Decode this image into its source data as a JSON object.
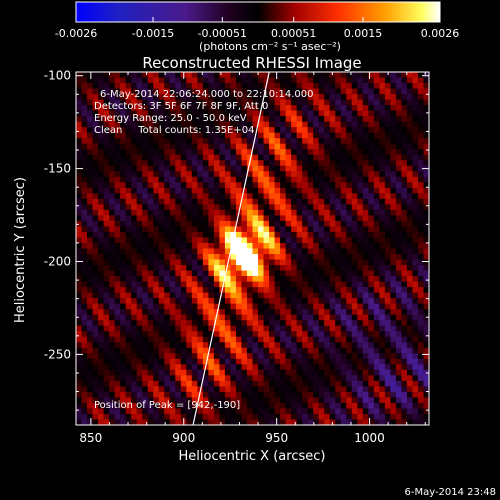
{
  "chart_data": {
    "type": "heatmap",
    "title": "Reconstructed RHESSI Image",
    "xlabel": "Heliocentric X (arcsec)",
    "ylabel": "Heliocentric Y (arcsec)",
    "xlim": [
      842,
      1032
    ],
    "ylim": [
      -288,
      -98
    ],
    "xticks": [
      850,
      900,
      950,
      1000
    ],
    "yticks": [
      -100,
      -150,
      -200,
      -250
    ],
    "colorbar": {
      "range": [
        -0.0026,
        0.0026
      ],
      "ticks": [
        "-0.0026",
        "-0.0015",
        "-0.00051",
        "0.00051",
        "0.0015",
        "0.0026"
      ],
      "unit_label": "(photons cm⁻² s⁻¹ asec⁻²)",
      "colormap": "blue-black-red-yellow-white"
    },
    "annotations": [
      "6-May-2014 22:06:24.000 to 22:10:14.000",
      "Detectors: 3F 5F 6F 7F 8F 9F, Att 0",
      "Energy Range: 25.0 - 50.0 keV",
      "Clean     Total counts: 1.35E+04"
    ],
    "peak": {
      "label": "Position of Peak = [942,-190]",
      "x": 942,
      "y": -190
    },
    "source_center": [
      932,
      -196
    ],
    "limb_line": [
      [
        905,
        -288
      ],
      [
        946,
        -98
      ]
    ]
  },
  "timestamp": "6-May-2014 23:48"
}
